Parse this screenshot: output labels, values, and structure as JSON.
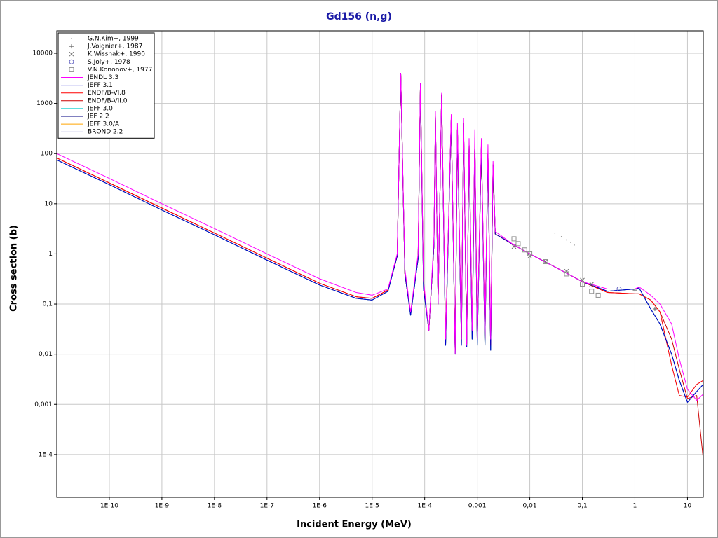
{
  "chart_data": {
    "type": "line",
    "title": "Gd156 (n,g)",
    "x_label": "Incident Energy (MeV)",
    "y_label": "Cross section (b)",
    "xscale": "log",
    "yscale": "log",
    "grid": true,
    "legend": "upper left",
    "xlim": [
      1e-11,
      20
    ],
    "ylim": [
      1.4e-05,
      28000
    ],
    "xticks": [
      {
        "value": 1e-10,
        "label": "1E-10"
      },
      {
        "value": 1e-09,
        "label": "1E-9"
      },
      {
        "value": 1e-08,
        "label": "1E-8"
      },
      {
        "value": 1e-07,
        "label": "1E-7"
      },
      {
        "value": 1e-06,
        "label": "1E-6"
      },
      {
        "value": 1e-05,
        "label": "1E-5"
      },
      {
        "value": 0.0001,
        "label": "1E-4"
      },
      {
        "value": 0.001,
        "label": "0,001"
      },
      {
        "value": 0.01,
        "label": "0,01"
      },
      {
        "value": 0.1,
        "label": "0,1"
      },
      1,
      10
    ],
    "yticks": [
      {
        "value": 0.0001,
        "label": "1E-4"
      },
      {
        "value": 0.001,
        "label": "0,001"
      },
      {
        "value": 0.01,
        "label": "0,01"
      },
      {
        "value": 0.1,
        "label": "0,1"
      },
      1,
      10,
      100,
      1000,
      10000
    ],
    "x": [
      1e-11,
      1e-10,
      1e-09,
      1e-08,
      1e-07,
      1e-06,
      5e-06,
      1e-05,
      2e-05,
      3e-05,
      3.5e-05,
      4.2e-05,
      5.4e-05,
      7.5e-05,
      8.3e-05,
      9.5e-05,
      0.00012,
      0.00015,
      0.00016,
      0.00018,
      0.00021,
      0.00025,
      0.00032,
      0.00038,
      0.00042,
      0.0005,
      0.00055,
      0.00063,
      0.0007,
      0.0008,
      0.0009,
      0.001,
      0.0012,
      0.0014,
      0.0016,
      0.0018,
      0.002,
      0.0022,
      0.005,
      0.01,
      0.03,
      0.1,
      0.3,
      1,
      1.2,
      2,
      3,
      5,
      7,
      10,
      15,
      20
    ],
    "series": [
      {
        "name": "G.N.Kim+, 1999",
        "mode": "marker",
        "marker": "dot",
        "color": "#808080",
        "x": [
          0.03,
          0.04,
          0.05,
          0.06,
          0.07
        ],
        "values": [
          2.6,
          2.2,
          1.9,
          1.7,
          1.5
        ]
      },
      {
        "name": "J.Voignier+, 1987",
        "mode": "marker",
        "marker": "plus",
        "color": "#606060",
        "x": [
          1.0,
          2.4
        ],
        "values": [
          0.19,
          0.08
        ]
      },
      {
        "name": "K.Wisshak+, 1990",
        "mode": "marker",
        "marker": "x",
        "color": "#707070",
        "x": [
          0.005,
          0.01,
          0.02,
          0.05,
          0.1,
          0.15
        ],
        "values": [
          1.4,
          0.9,
          0.7,
          0.45,
          0.3,
          0.25
        ]
      },
      {
        "name": "S.Joly+, 1978",
        "mode": "marker",
        "marker": "circle",
        "color": "#6060c0",
        "x": [
          0.5
        ],
        "values": [
          0.2
        ]
      },
      {
        "name": "V.N.Kononov+, 1977",
        "mode": "marker",
        "marker": "square",
        "color": "#909090",
        "x": [
          0.005,
          0.006,
          0.008,
          0.01,
          0.02,
          0.05,
          0.1,
          0.15,
          0.2
        ],
        "values": [
          2,
          1.6,
          1.2,
          1.0,
          0.7,
          0.4,
          0.25,
          0.18,
          0.15
        ]
      },
      {
        "name": "JENDL 3.3",
        "mode": "line",
        "color": "#ff00ff",
        "values": [
          100,
          32,
          10,
          3.2,
          1.0,
          0.32,
          0.17,
          0.15,
          0.2,
          1.0,
          4000,
          0.5,
          0.07,
          1,
          2500,
          0.3,
          0.03,
          2,
          700,
          0.1,
          1600,
          0.02,
          600,
          0.01,
          400,
          0.02,
          500,
          0.015,
          200,
          0.03,
          300,
          0.02,
          200,
          0.02,
          150,
          0.02,
          70,
          2.8,
          1.5,
          1.0,
          0.55,
          0.28,
          0.2,
          0.2,
          0.22,
          0.15,
          0.1,
          0.04,
          0.008,
          0.002,
          0.0012,
          0.0016
        ]
      },
      {
        "name": "JEFF 3.1",
        "mode": "line",
        "color": "#0000cc",
        "values": [
          75,
          24,
          7.5,
          2.4,
          0.75,
          0.24,
          0.13,
          0.12,
          0.18,
          0.9,
          4000,
          0.4,
          0.06,
          0.8,
          2500,
          0.2,
          0.03,
          1.5,
          600,
          0.1,
          1500,
          0.015,
          500,
          0.01,
          300,
          0.015,
          400,
          0.014,
          150,
          0.02,
          200,
          0.015,
          150,
          0.015,
          100,
          0.012,
          60,
          2.5,
          1.5,
          1.0,
          0.55,
          0.28,
          0.18,
          0.2,
          0.21,
          0.08,
          0.04,
          0.01,
          0.003,
          0.0011,
          0.0018,
          0.0025
        ]
      },
      {
        "name": "ENDF/B-VI.8",
        "mode": "line",
        "color": "#ff0000",
        "values": [
          82,
          26,
          8.2,
          2.6,
          0.82,
          0.26,
          0.14,
          0.13,
          0.19,
          0.9,
          4000,
          0.4,
          0.065,
          0.9,
          2500,
          0.25,
          0.03,
          1.5,
          600,
          0.1,
          1500,
          0.02,
          500,
          0.012,
          300,
          0.02,
          400,
          0.016,
          150,
          0.03,
          200,
          0.02,
          150,
          0.02,
          100,
          0.015,
          60,
          2.5,
          1.5,
          1.0,
          0.55,
          0.28,
          0.17,
          0.16,
          0.16,
          0.12,
          0.07,
          0.006,
          0.0015,
          0.0014,
          0.0025,
          0.003
        ]
      },
      {
        "name": "ENDF/B-VII.0",
        "mode": "line",
        "color": "#cc0000",
        "values": [
          82,
          26,
          8.2,
          2.6,
          0.82,
          0.26,
          0.14,
          0.13,
          0.19,
          0.9,
          4000,
          0.4,
          0.065,
          0.9,
          2500,
          0.25,
          0.03,
          1.5,
          600,
          0.1,
          1500,
          0.02,
          500,
          0.012,
          300,
          0.02,
          400,
          0.016,
          150,
          0.03,
          200,
          0.02,
          150,
          0.02,
          100,
          0.015,
          60,
          2.5,
          1.5,
          1.0,
          0.55,
          0.28,
          0.17,
          0.16,
          0.16,
          0.12,
          0.07,
          0.02,
          0.005,
          0.0013,
          0.0015,
          8e-05
        ]
      },
      {
        "name": "JEFF 3.0",
        "mode": "line",
        "color": "#00cccc",
        "values": [
          75,
          24,
          7.5,
          2.4,
          0.75,
          0.24,
          0.13,
          0.12,
          0.18,
          0.9,
          4000,
          0.4,
          0.06,
          0.8,
          2500,
          0.2,
          0.03,
          1.5,
          600,
          0.1,
          1500,
          0.015,
          500,
          0.01,
          300,
          0.015,
          400,
          0.014,
          150,
          0.02,
          200,
          0.015,
          150,
          0.015,
          100,
          0.012,
          60,
          2.5,
          1.5,
          1.0,
          0.55,
          0.28,
          0.18,
          0.2,
          0.21,
          0.08,
          0.04,
          0.01,
          0.003,
          0.0011,
          0.0018,
          0.0025
        ]
      },
      {
        "name": "JEF 2.2",
        "mode": "line",
        "color": "#000080",
        "values": [
          75,
          24,
          7.5,
          2.4,
          0.75,
          0.24,
          0.13,
          0.12,
          0.18,
          0.9,
          4000,
          0.4,
          0.06,
          0.8,
          2500,
          0.2,
          0.03,
          1.5,
          600,
          0.1,
          1500,
          0.015,
          500,
          0.01,
          300,
          0.015,
          400,
          0.014,
          150,
          0.02,
          200,
          0.015,
          150,
          0.015,
          100,
          0.012,
          60,
          2.5,
          1.5,
          1.0,
          0.55,
          0.28,
          0.18,
          0.2,
          0.21,
          0.08,
          0.04,
          0.01,
          0.003,
          0.0011,
          0.0018,
          0.0025
        ]
      },
      {
        "name": "JEFF 3.0/A",
        "mode": "line",
        "color": "#ffa500",
        "values": [
          75,
          24,
          7.5,
          2.4,
          0.75,
          0.24,
          0.13,
          0.12,
          0.18,
          0.9,
          4000,
          0.4,
          0.06,
          0.8,
          2500,
          0.2,
          0.03,
          1.5,
          600,
          0.1,
          1500,
          0.015,
          500,
          0.01,
          300,
          0.015,
          400,
          0.014,
          150,
          0.02,
          200,
          0.015,
          150,
          0.015,
          100,
          0.012,
          60,
          2.5,
          1.5,
          1.0,
          0.55,
          0.28,
          0.18,
          0.2,
          0.21,
          0.08,
          0.04,
          0.01,
          0.003,
          0.0011,
          0.0018,
          0.0025
        ]
      },
      {
        "name": "BROND 2.2",
        "mode": "line",
        "color": "#b0b0e0",
        "values": [
          82,
          26,
          8.2,
          2.6,
          0.82,
          0.26,
          0.14,
          0.13,
          0.19,
          0.9,
          4000,
          0.4,
          0.065,
          0.9,
          2500,
          0.25,
          0.03,
          1.5,
          600,
          0.1,
          1500,
          0.02,
          500,
          0.012,
          300,
          0.02,
          400,
          0.016,
          150,
          0.03,
          200,
          0.02,
          150,
          0.02,
          100,
          0.015,
          60,
          2.5,
          1.5,
          1.0,
          0.55,
          0.28,
          0.17,
          0.16,
          0.16,
          0.12,
          0.07,
          0.006,
          0.0015,
          0.0014,
          0.0025,
          0.003
        ]
      }
    ]
  }
}
